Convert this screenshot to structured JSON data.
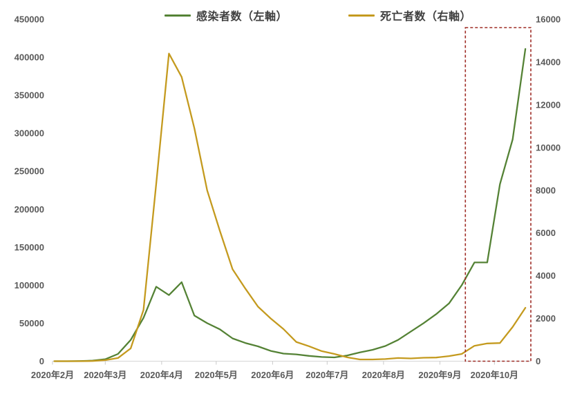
{
  "legend": [
    {
      "label": "感染者数（左軸）",
      "color": "#548235"
    },
    {
      "label": "死亡者数（右軸）",
      "color": "#C49A1E"
    }
  ],
  "chart_data": {
    "type": "line",
    "title": "",
    "xlabel": "",
    "ylabel_left": "",
    "ylabel_right": "",
    "grid": false,
    "legend_position": "top-center",
    "x_dates": [
      "2020-02-02",
      "2020-02-09",
      "2020-02-16",
      "2020-02-23",
      "2020-03-01",
      "2020-03-08",
      "2020-03-15",
      "2020-03-22",
      "2020-03-29",
      "2020-04-05",
      "2020-04-12",
      "2020-04-19",
      "2020-04-26",
      "2020-05-03",
      "2020-05-10",
      "2020-05-17",
      "2020-05-24",
      "2020-05-31",
      "2020-06-07",
      "2020-06-14",
      "2020-06-21",
      "2020-06-28",
      "2020-07-05",
      "2020-07-12",
      "2020-07-19",
      "2020-07-26",
      "2020-08-02",
      "2020-08-09",
      "2020-08-16",
      "2020-08-23",
      "2020-08-30",
      "2020-09-06",
      "2020-09-13",
      "2020-09-20",
      "2020-09-27",
      "2020-10-04",
      "2020-10-11",
      "2020-10-18"
    ],
    "series": [
      {
        "name": "感染者数（左軸）",
        "axis": "left",
        "color": "#548235",
        "values": [
          0,
          0,
          200,
          700,
          2500,
          9500,
          28000,
          57000,
          98000,
          87000,
          104000,
          60000,
          50000,
          42000,
          30000,
          24000,
          19500,
          13500,
          10000,
          9000,
          7000,
          5500,
          5000,
          7500,
          11500,
          15000,
          20000,
          28000,
          39000,
          50000,
          62000,
          76000,
          100000,
          130000,
          130000,
          233000,
          292000,
          411000
        ]
      },
      {
        "name": "死亡者数（右軸）",
        "axis": "right",
        "color": "#C49A1E",
        "values": [
          0,
          0,
          0,
          10,
          50,
          150,
          600,
          2400,
          8300,
          14400,
          13300,
          10900,
          8000,
          6100,
          4300,
          3400,
          2550,
          2000,
          1500,
          900,
          700,
          470,
          340,
          180,
          80,
          80,
          100,
          150,
          130,
          160,
          170,
          240,
          340,
          720,
          830,
          850,
          1600,
          2500
        ]
      }
    ],
    "left_axis": {
      "min": 0,
      "max": 450000,
      "step": 50000,
      "tick_labels": [
        "0",
        "50000",
        "100000",
        "150000",
        "200000",
        "250000",
        "300000",
        "350000",
        "400000",
        "450000"
      ]
    },
    "right_axis": {
      "min": 0,
      "max": 16000,
      "step": 2000,
      "tick_labels": [
        "0",
        "2000",
        "4000",
        "6000",
        "8000",
        "10000",
        "12000",
        "14000",
        "16000"
      ]
    },
    "x_ticks": [
      {
        "label": "2020年2月",
        "date": "2020-02-01"
      },
      {
        "label": "2020年3月",
        "date": "2020-03-01"
      },
      {
        "label": "2020年4月",
        "date": "2020-04-01"
      },
      {
        "label": "2020年5月",
        "date": "2020-05-01"
      },
      {
        "label": "2020年6月",
        "date": "2020-06-01"
      },
      {
        "label": "2020年7月",
        "date": "2020-07-01"
      },
      {
        "label": "2020年8月",
        "date": "2020-08-01"
      },
      {
        "label": "2020年9月",
        "date": "2020-09-01"
      },
      {
        "label": "2020年10月",
        "date": "2020-10-01"
      }
    ],
    "highlight_region": {
      "start_date": "2020-09-15",
      "end_date": "2020-10-21",
      "color": "#9E2B25",
      "style": "dashed"
    }
  }
}
